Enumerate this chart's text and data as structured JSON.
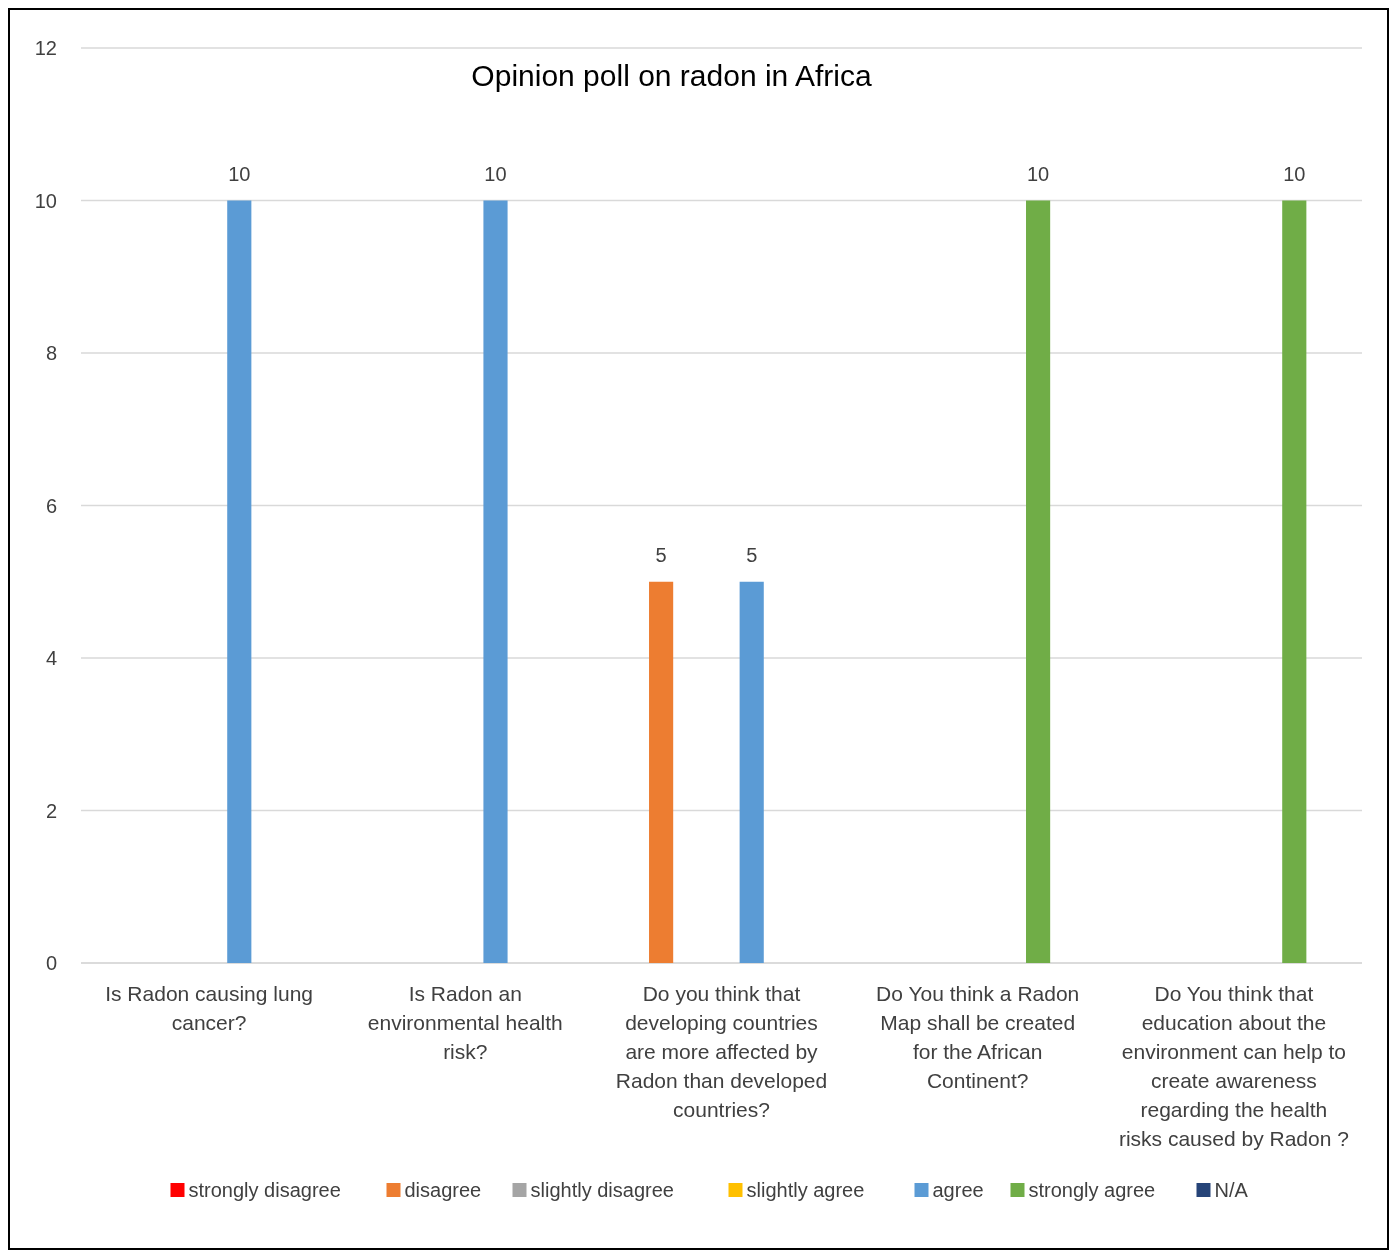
{
  "chart_data": {
    "type": "bar",
    "title": "Opinion poll on radon in Africa",
    "categories": [
      "Is Radon causing lung cancer?",
      "Is Radon an environmental health risk?",
      "Do you think that developing countries are more affected by Radon than developed countries?",
      "Do You think a Radon Map shall be created for the African Continent?",
      "Do You think that education about the environment can help to create awareness regarding the health risks caused by Radon ?"
    ],
    "series": [
      {
        "name": "strongly disagree",
        "color": "#ff0000",
        "values": [
          null,
          null,
          null,
          null,
          null
        ]
      },
      {
        "name": "disagree",
        "color": "#ed7d31",
        "values": [
          null,
          null,
          5,
          null,
          null
        ]
      },
      {
        "name": "slightly disagree",
        "color": "#a5a5a5",
        "values": [
          null,
          null,
          null,
          null,
          null
        ]
      },
      {
        "name": "slightly agree",
        "color": "#ffc000",
        "values": [
          null,
          null,
          null,
          null,
          null
        ]
      },
      {
        "name": "agree",
        "color": "#5b9bd5",
        "values": [
          10,
          10,
          5,
          null,
          null
        ]
      },
      {
        "name": "strongly agree",
        "color": "#70ad47",
        "values": [
          null,
          null,
          null,
          10,
          10
        ]
      },
      {
        "name": "N/A",
        "color": "#264478",
        "values": [
          null,
          null,
          null,
          null,
          null
        ]
      }
    ],
    "ylim": [
      0,
      12
    ],
    "yticks": [
      0,
      2,
      4,
      6,
      8,
      10,
      12
    ],
    "grid": "y",
    "legend": "bottom",
    "data_labels": true
  }
}
